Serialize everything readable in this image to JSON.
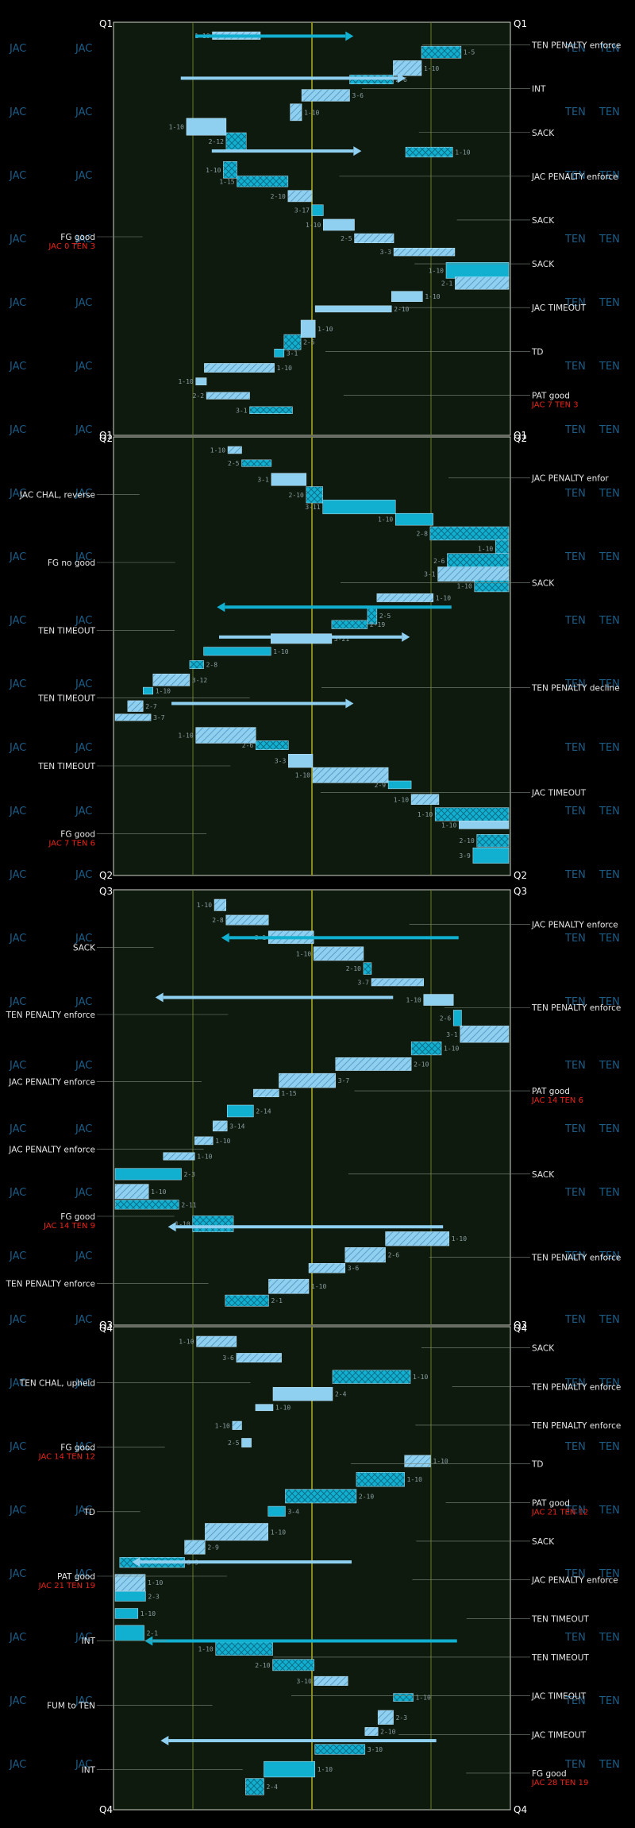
{
  "colors": {
    "background": "#000000",
    "field": "#0f1a0e",
    "gridline": "#6a7a2a",
    "midfield": "#8a8a1a",
    "run_box": "#8fcff0",
    "pass_box": "#12b0d0",
    "event_text": "#e6e6e6",
    "score_text": "#e8241a",
    "team_watermark": "#1d5d86"
  },
  "watermarks": {
    "home": "JAC",
    "away": "TEN"
  },
  "chart_data": {
    "type": "drive-chart",
    "title": "",
    "quarters": [
      {
        "start_label": "Q1",
        "end_label": "Q1",
        "right_events": [
          {
            "text": "TEN PENALTY enforce",
            "score": ""
          },
          {
            "text": "INT",
            "score": ""
          },
          {
            "text": "SACK",
            "score": ""
          },
          {
            "text": "JAC PENALTY enforce",
            "score": ""
          },
          {
            "text": "SACK",
            "score": ""
          },
          {
            "text": "SACK",
            "score": ""
          },
          {
            "text": "JAC TIMEOUT",
            "score": ""
          },
          {
            "text": "TD",
            "score": ""
          },
          {
            "text": "PAT good",
            "score": "JAC 7 TEN 3"
          }
        ],
        "left_events": [
          {
            "text": "FG good",
            "score": "JAC 0 TEN 3"
          }
        ],
        "downs": [
          "1-10",
          "1-5",
          "1-10",
          "2-6",
          "3-6",
          "1-10",
          "1-10",
          "2-12",
          "1-10",
          "1-10",
          "1-15",
          "2-10",
          "3-17",
          "1-10",
          "2-5",
          "3-3",
          "1-10",
          "2-1",
          "1-10",
          "2-10",
          "1-10",
          "2-5",
          "3-1",
          "1-10",
          "1-10",
          "2-2",
          "3-1"
        ]
      },
      {
        "start_label": "Q2",
        "end_label": "Q2",
        "right_events": [
          {
            "text": "JAC PENALTY enfor",
            "score": ""
          },
          {
            "text": "SACK",
            "score": ""
          },
          {
            "text": "TEN PENALTY decline",
            "score": ""
          },
          {
            "text": "JAC TIMEOUT",
            "score": ""
          }
        ],
        "left_events": [
          {
            "text": "JAC CHAL, reverse",
            "score": ""
          },
          {
            "text": "FG no good",
            "score": ""
          },
          {
            "text": "TEN TIMEOUT",
            "score": ""
          },
          {
            "text": "TEN TIMEOUT",
            "score": ""
          },
          {
            "text": "TEN TIMEOUT",
            "score": ""
          },
          {
            "text": "FG good",
            "score": "JAC 7 TEN 6"
          }
        ],
        "downs": [
          "1-10",
          "2-5",
          "3-1",
          "2-10",
          "3-11",
          "1-10",
          "2-8",
          "1-10",
          "2-6",
          "3-1",
          "1-10",
          "1-10",
          "2-5",
          "2-19",
          "3-21",
          "1-10",
          "2-8",
          "3-12",
          "1-10",
          "2-7",
          "3-7",
          "1-10",
          "2-6",
          "3-3",
          "1-10",
          "2-9",
          "1-10",
          "1-10",
          "1-10",
          "2-10",
          "3-9"
        ]
      },
      {
        "start_label": "Q3",
        "end_label": "Q3",
        "right_events": [
          {
            "text": "JAC PENALTY enforce",
            "score": ""
          },
          {
            "text": "TEN PENALTY enforce",
            "score": ""
          },
          {
            "text": "PAT good",
            "score": "JAC 14 TEN 6"
          },
          {
            "text": "SACK",
            "score": ""
          },
          {
            "text": "TEN PENALTY enforce",
            "score": ""
          }
        ],
        "left_events": [
          {
            "text": "SACK",
            "score": ""
          },
          {
            "text": "TEN PENALTY enforce",
            "score": ""
          },
          {
            "text": "JAC PENALTY enforce",
            "score": ""
          },
          {
            "text": "JAC PENALTY enforce",
            "score": ""
          },
          {
            "text": "FG good",
            "score": "JAC 14 TEN 9"
          },
          {
            "text": "TEN PENALTY enforce",
            "score": ""
          }
        ],
        "downs": [
          "1-10",
          "2-8",
          "3-1",
          "1-10",
          "2-10",
          "3-7",
          "1-10",
          "2-6",
          "3-1",
          "1-10",
          "2-10",
          "3-7",
          "1-15",
          "2-14",
          "3-14",
          "1-10",
          "1-10",
          "2-3",
          "1-10",
          "2-11",
          "1-10",
          "1-10",
          "2-6",
          "3-6",
          "1-10",
          "2-1"
        ]
      },
      {
        "start_label": "Q4",
        "end_label": "Q4",
        "right_events": [
          {
            "text": "SACK",
            "score": ""
          },
          {
            "text": "TEN PENALTY enforce",
            "score": ""
          },
          {
            "text": "TEN PENALTY enforce",
            "score": ""
          },
          {
            "text": "TD",
            "score": ""
          },
          {
            "text": "PAT good",
            "score": "JAC 21 TEN 12"
          },
          {
            "text": "SACK",
            "score": ""
          },
          {
            "text": "JAC PENALTY enforce",
            "score": ""
          },
          {
            "text": "TEN TIMEOUT",
            "score": ""
          },
          {
            "text": "TEN TIMEOUT",
            "score": ""
          },
          {
            "text": "JAC TIMEOUT",
            "score": ""
          },
          {
            "text": "JAC TIMEOUT",
            "score": ""
          },
          {
            "text": "FG good",
            "score": "JAC 28 TEN 19"
          }
        ],
        "left_events": [
          {
            "text": "TEN CHAL, upheld",
            "score": ""
          },
          {
            "text": "FG good",
            "score": "JAC 14 TEN 12"
          },
          {
            "text": "TD",
            "score": ""
          },
          {
            "text": "PAT good",
            "score": "JAC 21 TEN 19"
          },
          {
            "text": "INT",
            "score": ""
          },
          {
            "text": "FUM to TEN",
            "score": ""
          },
          {
            "text": "INT",
            "score": ""
          }
        ],
        "downs": [
          "1-10",
          "3-6",
          "1-10",
          "2-4",
          "1-10",
          "1-10",
          "2-5",
          "1-10",
          "1-10",
          "2-10",
          "3-4",
          "1-10",
          "2-9",
          "3-9",
          "1-10",
          "2-3",
          "1-10",
          "2-1",
          "1-10",
          "2-10",
          "3-10",
          "1-10",
          "2-3",
          "2-10",
          "3-10",
          "1-10",
          "2-4"
        ]
      }
    ]
  }
}
